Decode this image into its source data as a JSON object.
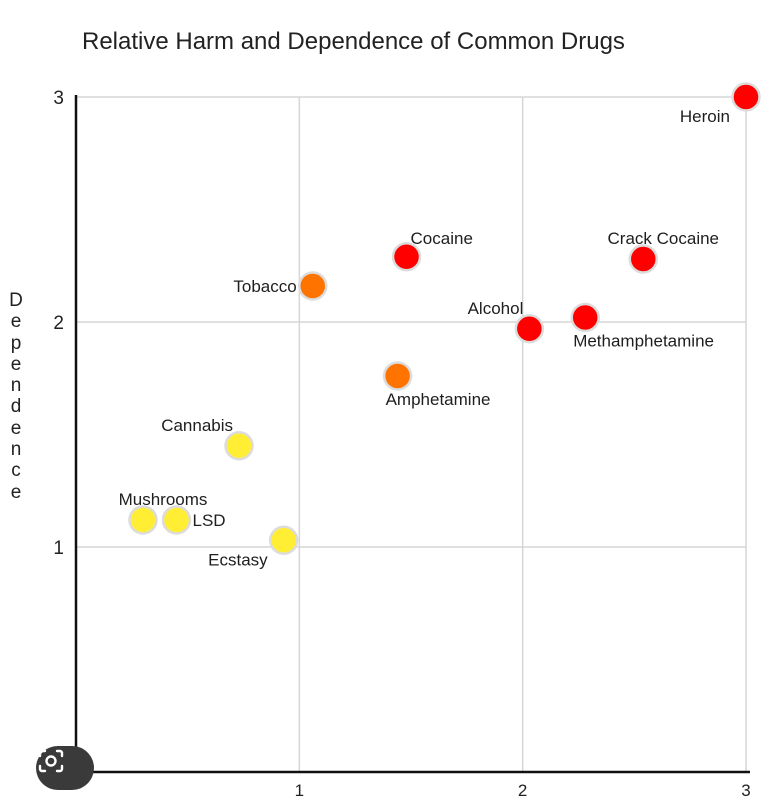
{
  "chart_data": {
    "type": "scatter",
    "title": "Relative Harm and Dependence of Common Drugs",
    "xlabel": "",
    "ylabel": "Dependence",
    "xlim": [
      0,
      3
    ],
    "ylim": [
      0,
      3
    ],
    "xticks": [
      1,
      2,
      3
    ],
    "yticks": [
      1,
      2,
      3
    ],
    "grid": true,
    "colors": {
      "high": "#ff0000",
      "medium": "#ff7300",
      "low": "#ffee33"
    },
    "points": [
      {
        "label": "Heroin",
        "x": 3.0,
        "y": 3.0,
        "group": "high",
        "label_pos": "below-left"
      },
      {
        "label": "Cocaine",
        "x": 1.48,
        "y": 2.29,
        "group": "high",
        "label_pos": "above-right"
      },
      {
        "label": "Crack Cocaine",
        "x": 2.54,
        "y": 2.28,
        "group": "high",
        "label_pos": "above"
      },
      {
        "label": "Alcohol",
        "x": 2.03,
        "y": 1.97,
        "group": "high",
        "label_pos": "above-left"
      },
      {
        "label": "Methamphetamine",
        "x": 2.28,
        "y": 2.02,
        "group": "high",
        "label_pos": "below-right"
      },
      {
        "label": "Tobacco",
        "x": 1.06,
        "y": 2.16,
        "group": "medium",
        "label_pos": "left"
      },
      {
        "label": "Amphetamine",
        "x": 1.44,
        "y": 1.76,
        "group": "medium",
        "label_pos": "below-right"
      },
      {
        "label": "Cannabis",
        "x": 0.73,
        "y": 1.45,
        "group": "low",
        "label_pos": "above-left"
      },
      {
        "label": "Mushrooms",
        "x": 0.3,
        "y": 1.12,
        "group": "low",
        "label_pos": "above"
      },
      {
        "label": "LSD",
        "x": 0.45,
        "y": 1.12,
        "group": "low",
        "label_pos": "right"
      },
      {
        "label": "Ecstasy",
        "x": 0.93,
        "y": 1.03,
        "group": "low",
        "label_pos": "below-left"
      }
    ]
  }
}
